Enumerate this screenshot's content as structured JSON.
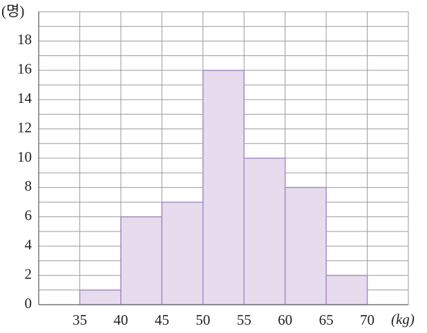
{
  "chart_data": {
    "type": "histogram",
    "y_unit": "(명)",
    "x_unit": "(kg)",
    "bins": [
      35,
      40,
      45,
      50,
      55,
      60,
      65,
      70
    ],
    "values": [
      1,
      6,
      7,
      16,
      10,
      8,
      2
    ],
    "color": "#e6dced",
    "edgecolor": "#a98bc4",
    "xlim": [
      30,
      75
    ],
    "ylim": [
      0,
      20
    ],
    "xticks": [
      35,
      40,
      45,
      50,
      55,
      60,
      65,
      70
    ],
    "yticks": [
      0,
      2,
      4,
      6,
      8,
      10,
      12,
      14,
      16,
      18
    ],
    "yminorticks": [
      1,
      3,
      5,
      7,
      9,
      11,
      13,
      15,
      17,
      19
    ],
    "grid": true
  }
}
